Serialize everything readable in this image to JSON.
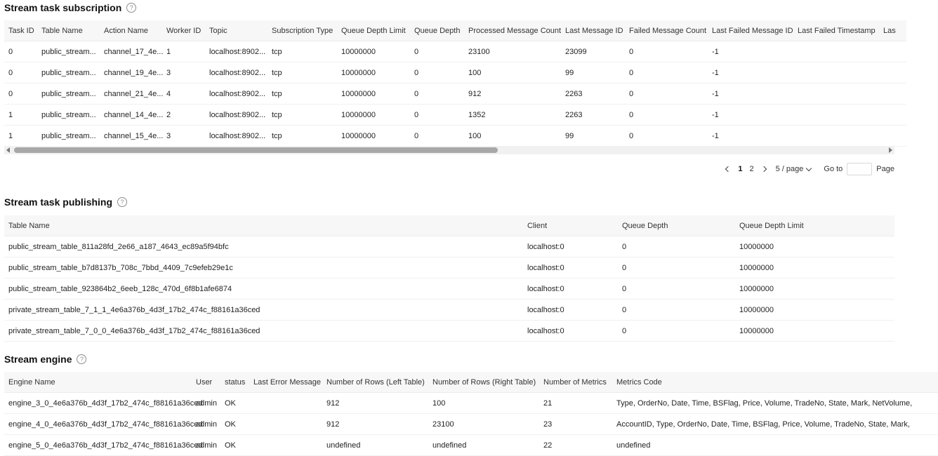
{
  "subscription": {
    "title": "Stream task subscription",
    "help_glyph": "?",
    "columns": [
      "Task ID",
      "Table Name",
      "Action Name",
      "Worker ID",
      "Topic",
      "Subscription Type",
      "Queue Depth Limit",
      "Queue Depth",
      "Processed Message Count",
      "Last Message ID",
      "Failed Message Count",
      "Last Failed Message ID",
      "Last Failed Timestamp",
      "Las"
    ],
    "rows": [
      [
        "0",
        "public_stream...",
        "channel_17_4e...",
        "1",
        "localhost:8902...",
        "tcp",
        "10000000",
        "0",
        "23100",
        "23099",
        "0",
        "-1",
        "",
        ""
      ],
      [
        "0",
        "public_stream...",
        "channel_19_4e...",
        "3",
        "localhost:8902...",
        "tcp",
        "10000000",
        "0",
        "100",
        "99",
        "0",
        "-1",
        "",
        ""
      ],
      [
        "0",
        "public_stream...",
        "channel_21_4e...",
        "4",
        "localhost:8902...",
        "tcp",
        "10000000",
        "0",
        "912",
        "2263",
        "0",
        "-1",
        "",
        ""
      ],
      [
        "1",
        "public_stream...",
        "channel_14_4e...",
        "2",
        "localhost:8902...",
        "tcp",
        "10000000",
        "0",
        "1352",
        "2263",
        "0",
        "-1",
        "",
        ""
      ],
      [
        "1",
        "public_stream...",
        "channel_15_4e...",
        "3",
        "localhost:8902...",
        "tcp",
        "10000000",
        "0",
        "100",
        "99",
        "0",
        "-1",
        "",
        ""
      ]
    ],
    "pagination": {
      "pages": [
        "1",
        "2"
      ],
      "current_page": "1",
      "page_size": "5 / page",
      "goto_label": "Go to",
      "goto_value": "",
      "page_suffix": "Page"
    }
  },
  "publishing": {
    "title": "Stream task publishing",
    "help_glyph": "?",
    "columns": [
      "Table Name",
      "Client",
      "Queue Depth",
      "Queue Depth Limit"
    ],
    "rows": [
      [
        "public_stream_table_811a28fd_2e66_a187_4643_ec89a5f94bfc",
        "localhost:0",
        "0",
        "10000000"
      ],
      [
        "public_stream_table_b7d8137b_708c_7bbd_4409_7c9efeb29e1c",
        "localhost:0",
        "0",
        "10000000"
      ],
      [
        "public_stream_table_923864b2_6eeb_128c_470d_6f8b1afe6874",
        "localhost:0",
        "0",
        "10000000"
      ],
      [
        "private_stream_table_7_1_1_4e6a376b_4d3f_17b2_474c_f88161a36ced",
        "localhost:0",
        "0",
        "10000000"
      ],
      [
        "private_stream_table_7_0_0_4e6a376b_4d3f_17b2_474c_f88161a36ced",
        "localhost:0",
        "0",
        "10000000"
      ]
    ]
  },
  "engine": {
    "title": "Stream engine",
    "help_glyph": "?",
    "columns": [
      "Engine Name",
      "User",
      "status",
      "Last Error Message",
      "Number of Rows (Left Table)",
      "Number of Rows (Right Table)",
      "Number of Metrics",
      "Metrics Code"
    ],
    "rows": [
      [
        "engine_3_0_4e6a376b_4d3f_17b2_474c_f88161a36ced",
        "admin",
        "OK",
        "",
        "912",
        "100",
        "21",
        "Type, OrderNo, Date, Time, BSFlag, Price, Volume, TradeNo, State, Mark, NetVolume,"
      ],
      [
        "engine_4_0_4e6a376b_4d3f_17b2_474c_f88161a36ced",
        "admin",
        "OK",
        "",
        "912",
        "23100",
        "23",
        "AccountID, Type, OrderNo, Date, Time, BSFlag, Price, Volume, TradeNo, State, Mark,"
      ],
      [
        "engine_5_0_4e6a376b_4d3f_17b2_474c_f88161a36ced",
        "admin",
        "OK",
        "",
        "undefined",
        "undefined",
        "22",
        "undefined"
      ]
    ]
  }
}
